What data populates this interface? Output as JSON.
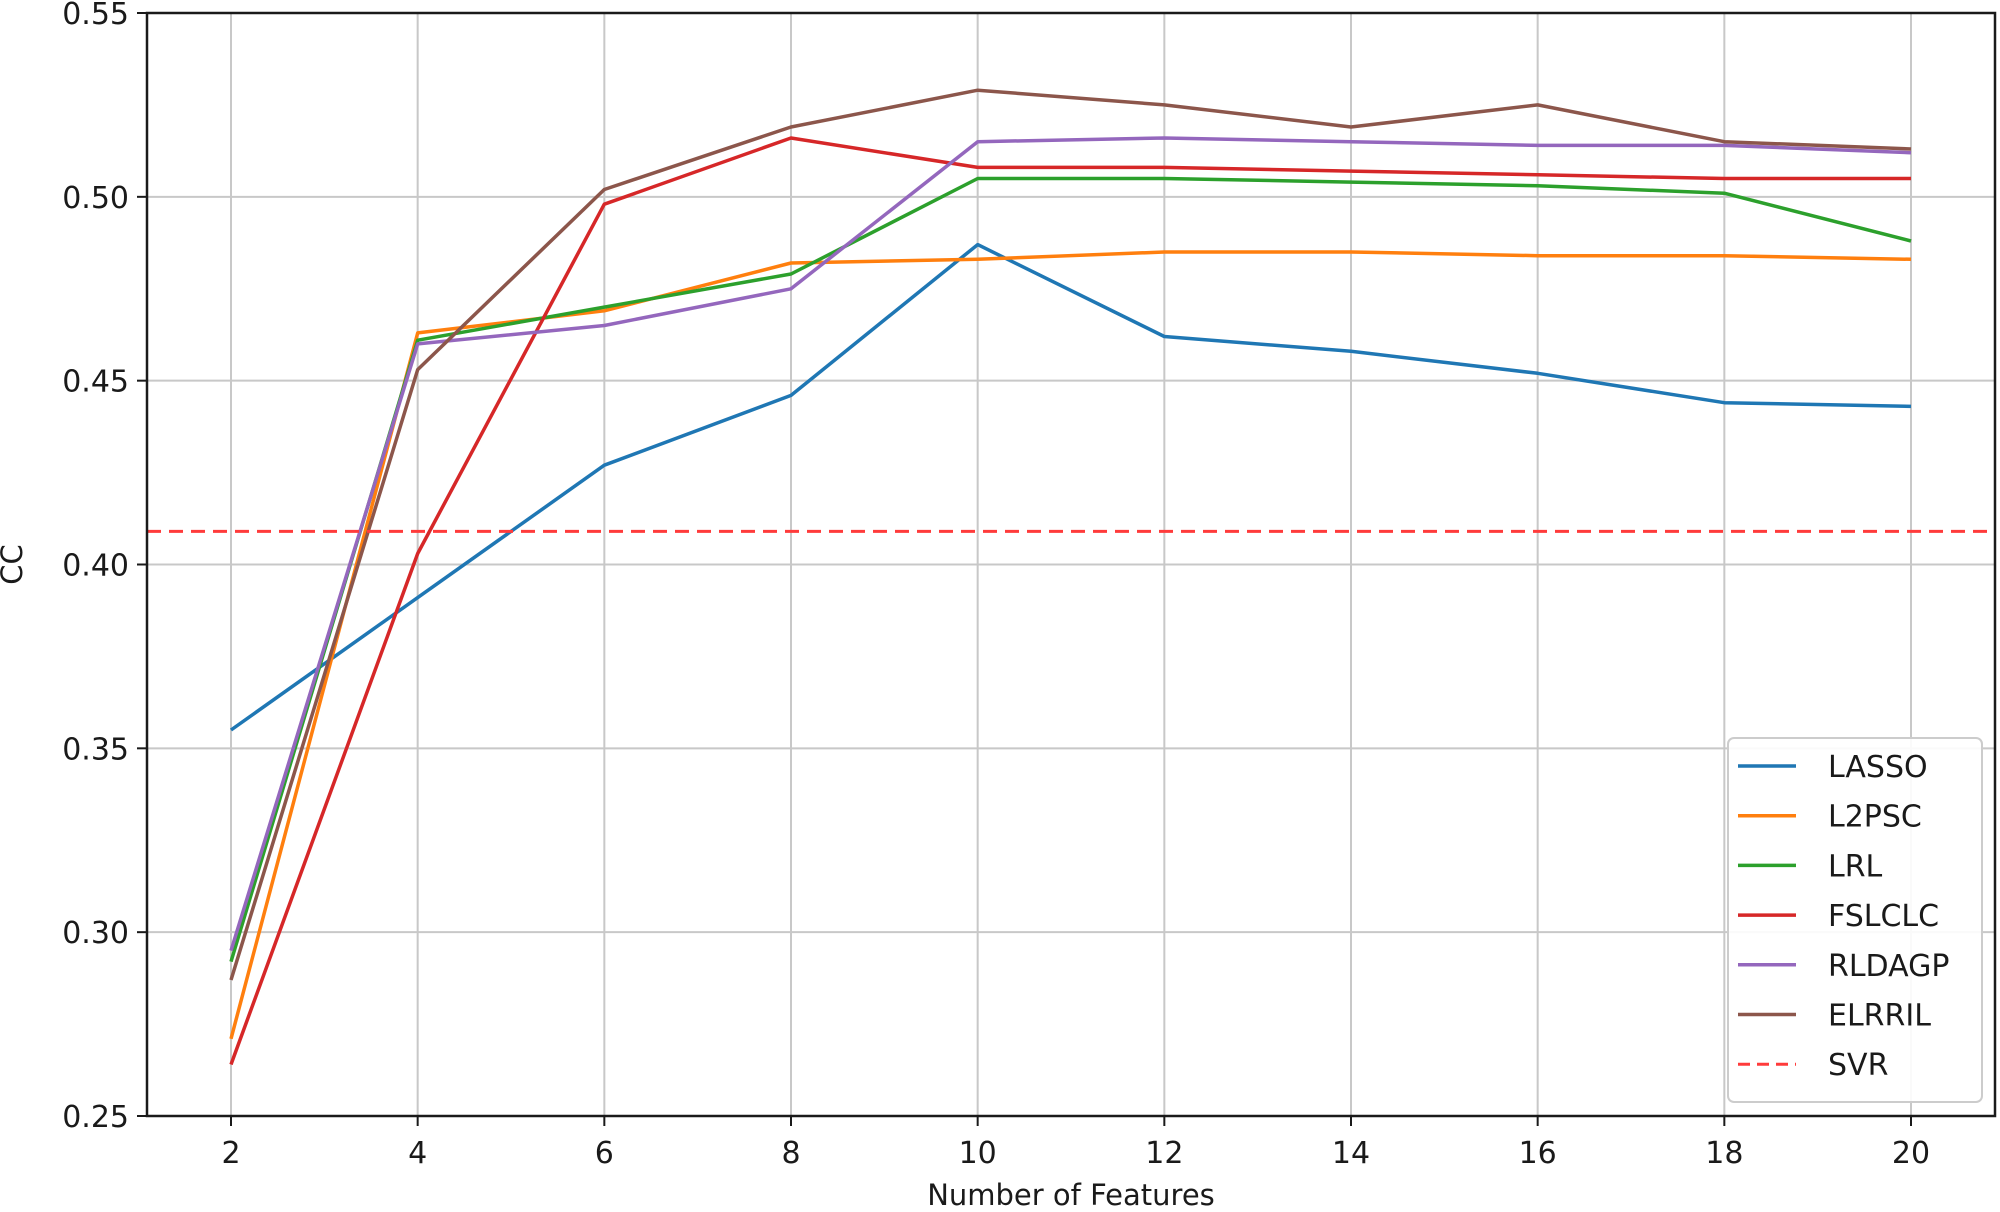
{
  "chart_data": {
    "type": "line",
    "xlabel": "Number of Features",
    "ylabel": "CC",
    "x": [
      2,
      4,
      6,
      8,
      10,
      12,
      14,
      16,
      18,
      20
    ],
    "xlim": [
      1.1,
      20.9
    ],
    "ylim": [
      0.25,
      0.55
    ],
    "xticks": [
      "2",
      "4",
      "6",
      "8",
      "10",
      "12",
      "14",
      "16",
      "18",
      "20"
    ],
    "yticks": [
      "0.25",
      "0.30",
      "0.35",
      "0.40",
      "0.45",
      "0.50",
      "0.55"
    ],
    "grid": true,
    "legend_position": "lower-right",
    "series": [
      {
        "name": "LASSO",
        "color": "#1f77b4",
        "style": "solid",
        "values": [
          0.355,
          0.391,
          0.427,
          0.446,
          0.487,
          0.462,
          0.458,
          0.452,
          0.444,
          0.443
        ]
      },
      {
        "name": "L2PSC",
        "color": "#ff7f0e",
        "style": "solid",
        "values": [
          0.271,
          0.463,
          0.469,
          0.482,
          0.483,
          0.485,
          0.485,
          0.484,
          0.484,
          0.483
        ]
      },
      {
        "name": "LRL",
        "color": "#2ca02c",
        "style": "solid",
        "values": [
          0.292,
          0.461,
          0.47,
          0.479,
          0.505,
          0.505,
          0.504,
          0.503,
          0.501,
          0.488
        ]
      },
      {
        "name": "FSLCLC",
        "color": "#d62728",
        "style": "solid",
        "values": [
          0.264,
          0.403,
          0.498,
          0.516,
          0.508,
          0.508,
          0.507,
          0.506,
          0.505,
          0.505
        ]
      },
      {
        "name": "RLDAGP",
        "color": "#9467bd",
        "style": "solid",
        "values": [
          0.295,
          0.46,
          0.465,
          0.475,
          0.515,
          0.516,
          0.515,
          0.514,
          0.514,
          0.512
        ]
      },
      {
        "name": "ELRRIL",
        "color": "#8c564b",
        "style": "solid",
        "values": [
          0.287,
          0.453,
          0.502,
          0.519,
          0.529,
          0.525,
          0.519,
          0.525,
          0.515,
          0.513
        ]
      },
      {
        "name": "SVR",
        "color": "#ff3b3b",
        "style": "dashed",
        "constant": 0.409
      }
    ]
  }
}
